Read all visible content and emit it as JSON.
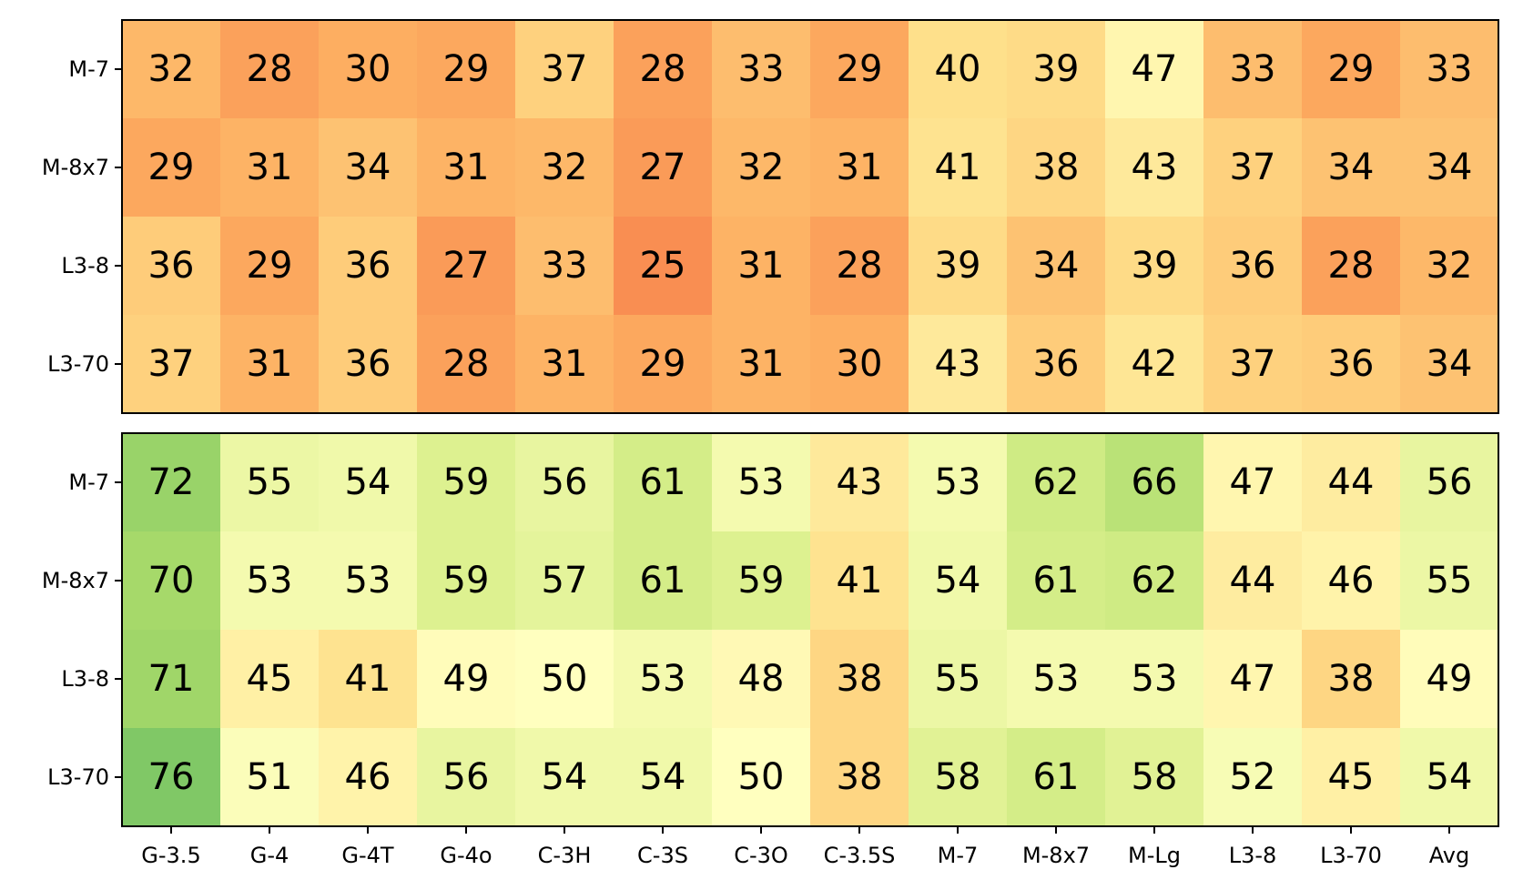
{
  "chart_data": [
    {
      "type": "heatmap",
      "colormap": "RdYlGn",
      "color_range": [
        0,
        100
      ],
      "rows": [
        "M-7",
        "M-8x7",
        "L3-8",
        "L3-70"
      ],
      "columns": [
        "G-3.5",
        "G-4",
        "G-4T",
        "G-4o",
        "C-3H",
        "C-3S",
        "C-3O",
        "C-3.5S",
        "M-7",
        "M-8x7",
        "M-Lg",
        "L3-8",
        "L3-70",
        "Avg"
      ],
      "values": [
        [
          32,
          28,
          30,
          29,
          37,
          28,
          33,
          29,
          40,
          39,
          47,
          33,
          29,
          33
        ],
        [
          29,
          31,
          34,
          31,
          32,
          27,
          32,
          31,
          41,
          38,
          43,
          37,
          34,
          34
        ],
        [
          36,
          29,
          36,
          27,
          33,
          25,
          31,
          28,
          39,
          34,
          39,
          36,
          28,
          32
        ],
        [
          37,
          31,
          36,
          28,
          31,
          29,
          31,
          30,
          43,
          36,
          42,
          37,
          36,
          34
        ]
      ],
      "grid": false
    },
    {
      "type": "heatmap",
      "colormap": "RdYlGn",
      "color_range": [
        0,
        100
      ],
      "rows": [
        "M-7",
        "M-8x7",
        "L3-8",
        "L3-70"
      ],
      "columns": [
        "G-3.5",
        "G-4",
        "G-4T",
        "G-4o",
        "C-3H",
        "C-3S",
        "C-3O",
        "C-3.5S",
        "M-7",
        "M-8x7",
        "M-Lg",
        "L3-8",
        "L3-70",
        "Avg"
      ],
      "values": [
        [
          72,
          55,
          54,
          59,
          56,
          61,
          53,
          43,
          53,
          62,
          66,
          47,
          44,
          56
        ],
        [
          70,
          53,
          53,
          59,
          57,
          61,
          59,
          41,
          54,
          61,
          62,
          44,
          46,
          55
        ],
        [
          71,
          45,
          41,
          49,
          50,
          53,
          48,
          38,
          55,
          53,
          53,
          47,
          38,
          49
        ],
        [
          76,
          51,
          46,
          56,
          54,
          54,
          50,
          38,
          58,
          61,
          58,
          52,
          45,
          54
        ]
      ],
      "grid": false
    }
  ]
}
